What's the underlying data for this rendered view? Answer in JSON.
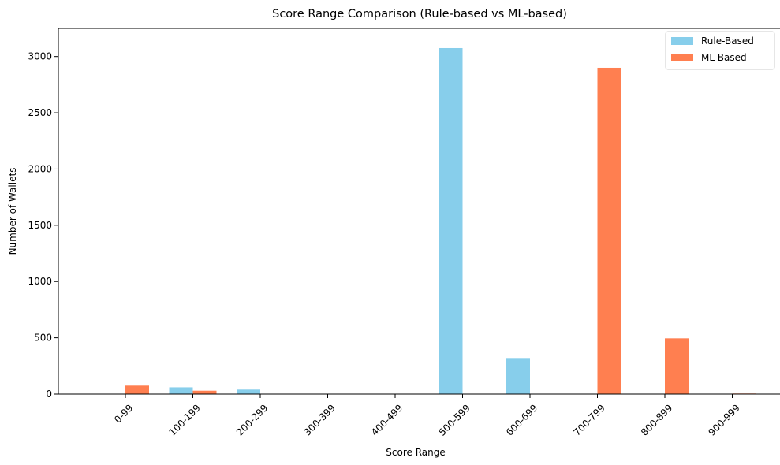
{
  "chart_data": {
    "type": "bar",
    "title": "Score Range Comparison (Rule-based vs ML-based)",
    "xlabel": "Score Range",
    "ylabel": "Number of Wallets",
    "categories": [
      "0-99",
      "100-199",
      "200-299",
      "300-399",
      "400-499",
      "500-599",
      "600-699",
      "700-799",
      "800-899",
      "900-999"
    ],
    "series": [
      {
        "name": "Rule-Based",
        "color": "#87CEEB",
        "values": [
          0,
          60,
          40,
          0,
          0,
          3075,
          320,
          0,
          0,
          0
        ]
      },
      {
        "name": "ML-Based",
        "color": "#FF7F50",
        "values": [
          75,
          30,
          0,
          0,
          0,
          0,
          0,
          2900,
          495,
          5
        ]
      }
    ],
    "ylim": [
      0,
      3250
    ],
    "yticks": [
      0,
      500,
      1000,
      1500,
      2000,
      2500,
      3000
    ],
    "grid": false,
    "legend": "top-right"
  }
}
